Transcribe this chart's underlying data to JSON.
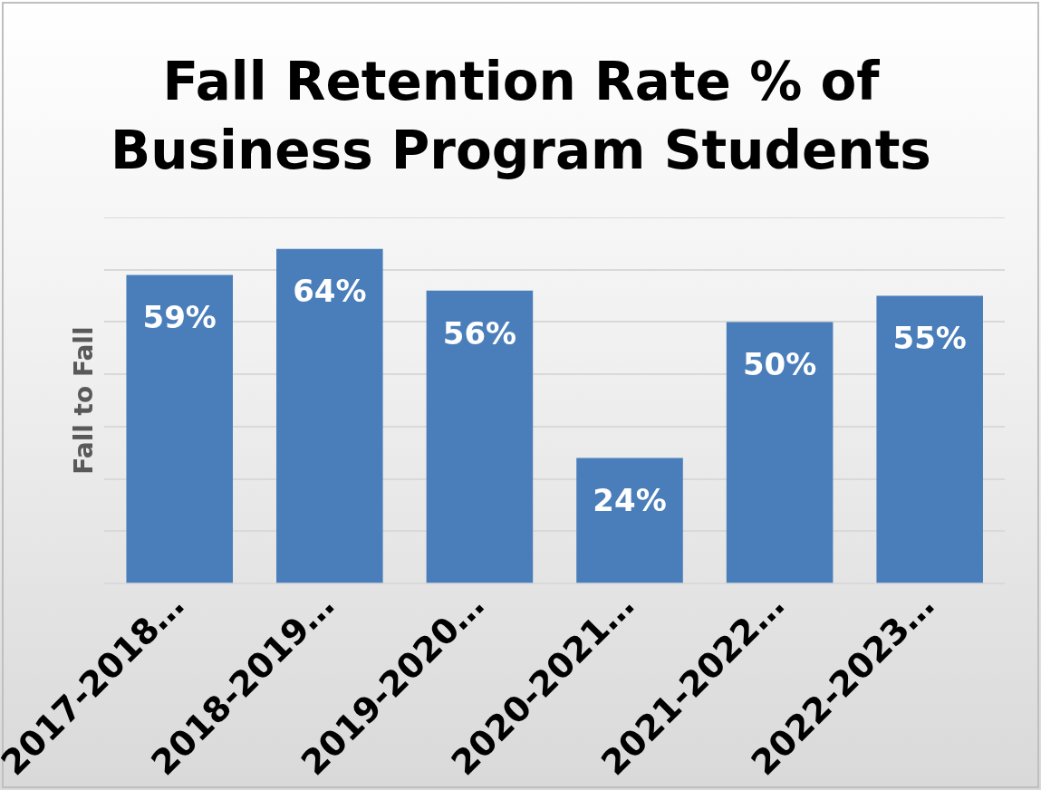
{
  "chart_data": {
    "type": "bar",
    "title": "Fall Retention Rate % of Business Program Students",
    "ylabel": "Fall to Fall",
    "categories": [
      "2017-2018…",
      "2018-2019…",
      "2019-2020…",
      "2020-2021…",
      "2021-2022…",
      "2022-2023…"
    ],
    "values": [
      59,
      64,
      56,
      24,
      50,
      55
    ],
    "color": "#4a7ebb",
    "value_labels": [
      "59%",
      "64%",
      "56%",
      "24%",
      "50%",
      "55%"
    ],
    "ylim": [
      0,
      70
    ],
    "yticks": [
      {
        "value": 0,
        "label": null
      },
      {
        "value": 10,
        "label": null
      },
      {
        "value": 20,
        "label": null
      },
      {
        "value": 30,
        "label": null
      },
      {
        "value": 40,
        "label": null
      },
      {
        "value": 50,
        "label": null
      },
      {
        "value": 60,
        "label": null
      },
      {
        "value": 70,
        "label": null
      }
    ],
    "grid": "y",
    "tick_labels": "x",
    "legend": false
  }
}
